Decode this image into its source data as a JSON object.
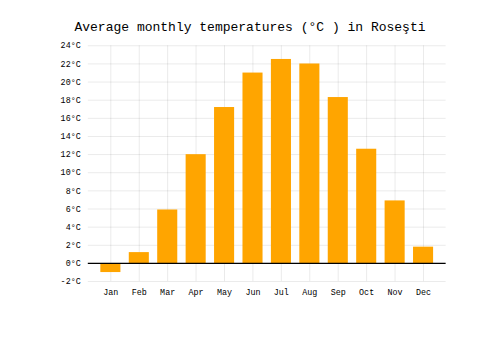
{
  "chart_data": {
    "type": "bar",
    "title": "Average monthly temperatures (°C ) in Roseşti",
    "categories": [
      "Jan",
      "Feb",
      "Mar",
      "Apr",
      "May",
      "Jun",
      "Jul",
      "Aug",
      "Sep",
      "Oct",
      "Nov",
      "Dec"
    ],
    "values": [
      -1.0,
      1.2,
      5.9,
      12.0,
      17.2,
      21.0,
      22.5,
      22.0,
      18.3,
      12.6,
      6.9,
      1.8
    ],
    "color": "#FFA500",
    "ylim": [
      -2,
      24
    ],
    "yticks": [
      {
        "value": -2,
        "label": "-2°C"
      },
      {
        "value": 0,
        "label": "0°C"
      },
      {
        "value": 2,
        "label": "2°C"
      },
      {
        "value": 4,
        "label": "4°C"
      },
      {
        "value": 6,
        "label": "6°C"
      },
      {
        "value": 8,
        "label": "8°C"
      },
      {
        "value": 10,
        "label": "10°C"
      },
      {
        "value": 12,
        "label": "12°C"
      },
      {
        "value": 14,
        "label": "14°C"
      },
      {
        "value": 16,
        "label": "16°C"
      },
      {
        "value": 18,
        "label": "18°C"
      },
      {
        "value": 20,
        "label": "20°C"
      },
      {
        "value": 22,
        "label": "22°C"
      },
      {
        "value": 24,
        "label": "24°C"
      }
    ],
    "grid": true
  }
}
